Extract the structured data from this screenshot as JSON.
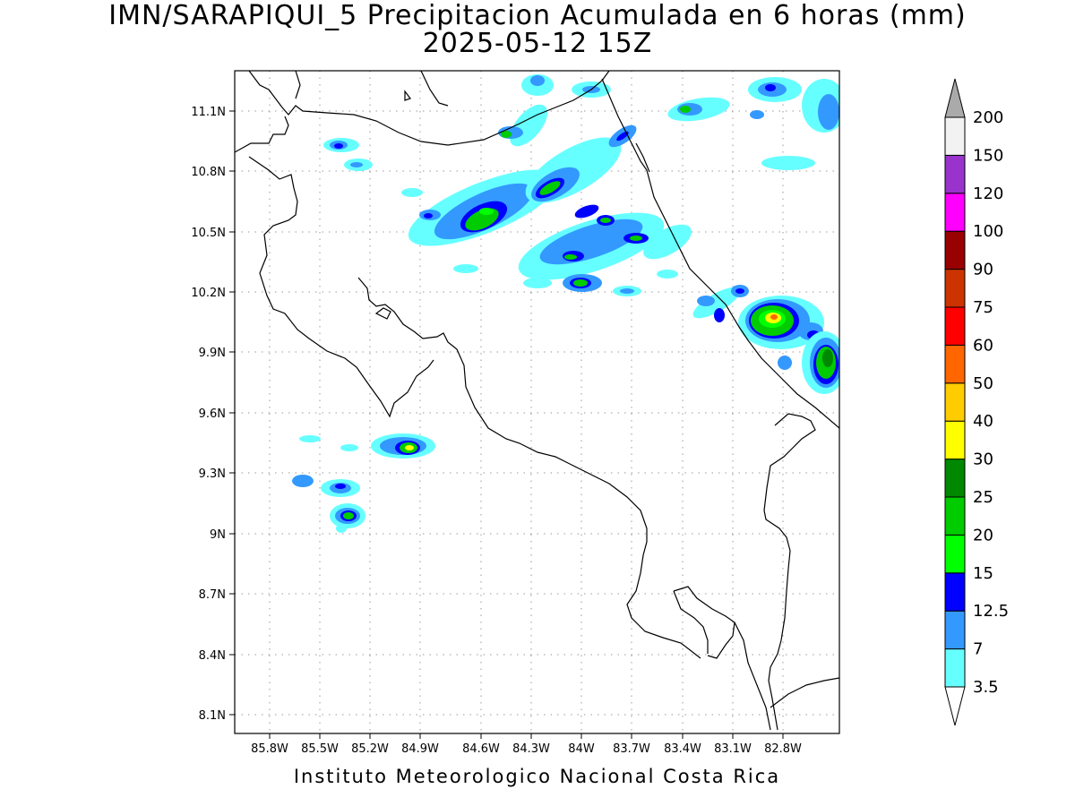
{
  "title": {
    "line1": "IMN/SARAPIQUI_5 Precipitacion Acumulada en 6 horas (mm)",
    "line2": "2025-05-12 15Z"
  },
  "footer": "Instituto Meteorologico Nacional Costa Rica",
  "axes": {
    "lat_ticks": [
      "11.1N",
      "10.8N",
      "10.5N",
      "10.2N",
      "9.9N",
      "9.6N",
      "9.3N",
      "9N",
      "8.7N",
      "8.4N",
      "8.1N"
    ],
    "lon_ticks": [
      "85.8W",
      "85.5W",
      "85.2W",
      "84.9W",
      "84.6W",
      "84.3W",
      "84W",
      "83.7W",
      "83.4W",
      "83.1W",
      "82.8W"
    ],
    "grid": "dotted"
  },
  "colorbar": {
    "levels": [
      "3.5",
      "7",
      "12.5",
      "15",
      "20",
      "25",
      "30",
      "40",
      "50",
      "60",
      "75",
      "90",
      "100",
      "120",
      "150",
      "200"
    ],
    "colors": [
      "#66ffff",
      "#3399ff",
      "#0000ff",
      "#00ff00",
      "#00cc00",
      "#008800",
      "#ffff00",
      "#ffcc00",
      "#ff6600",
      "#ff0000",
      "#cc3300",
      "#990000",
      "#ff00ff",
      "#9933cc",
      "#f2f2f2",
      "#aaaaaa"
    ],
    "units": "mm"
  }
}
